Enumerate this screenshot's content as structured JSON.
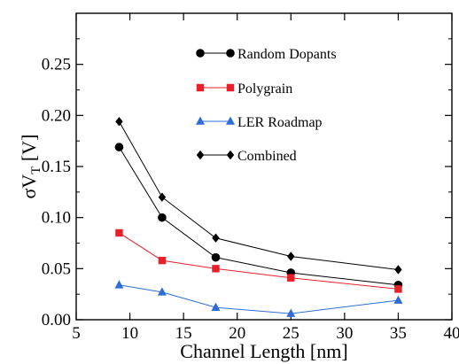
{
  "chart_data": {
    "type": "line",
    "xlabel": "Channel Length [nm]",
    "ylabel": "σV",
    "ylabel_sub": "T",
    "ylabel_unit": " [V]",
    "xlim": [
      5,
      40
    ],
    "ylim": [
      0,
      0.3
    ],
    "xticks": [
      5,
      10,
      15,
      20,
      25,
      30,
      35,
      40
    ],
    "xtick_labels": [
      "5",
      "10",
      "15",
      "20",
      "25",
      "30",
      "35",
      "40"
    ],
    "yticks": [
      0,
      0.05,
      0.1,
      0.15,
      0.2,
      0.25
    ],
    "ytick_labels": [
      "0.00",
      "0.05",
      "0.10",
      "0.15",
      "0.20",
      "0.25"
    ],
    "legend_position": "top-right",
    "grid": false,
    "x": [
      9,
      13,
      18,
      25,
      35
    ],
    "series": [
      {
        "name": "Random Dopants",
        "values": [
          0.169,
          0.1,
          0.061,
          0.046,
          0.034
        ],
        "color": "#000000",
        "marker": "circle"
      },
      {
        "name": "Polygrain",
        "values": [
          0.085,
          0.058,
          0.05,
          0.041,
          0.03
        ],
        "color": "#e8202a",
        "marker": "square"
      },
      {
        "name": "LER Roadmap",
        "values": [
          0.034,
          0.027,
          0.012,
          0.006,
          0.019
        ],
        "color": "#2e6dd8",
        "marker": "triangle"
      },
      {
        "name": "Combined",
        "values": [
          0.194,
          0.12,
          0.08,
          0.062,
          0.049
        ],
        "color": "#000000",
        "marker": "diamond"
      }
    ]
  }
}
